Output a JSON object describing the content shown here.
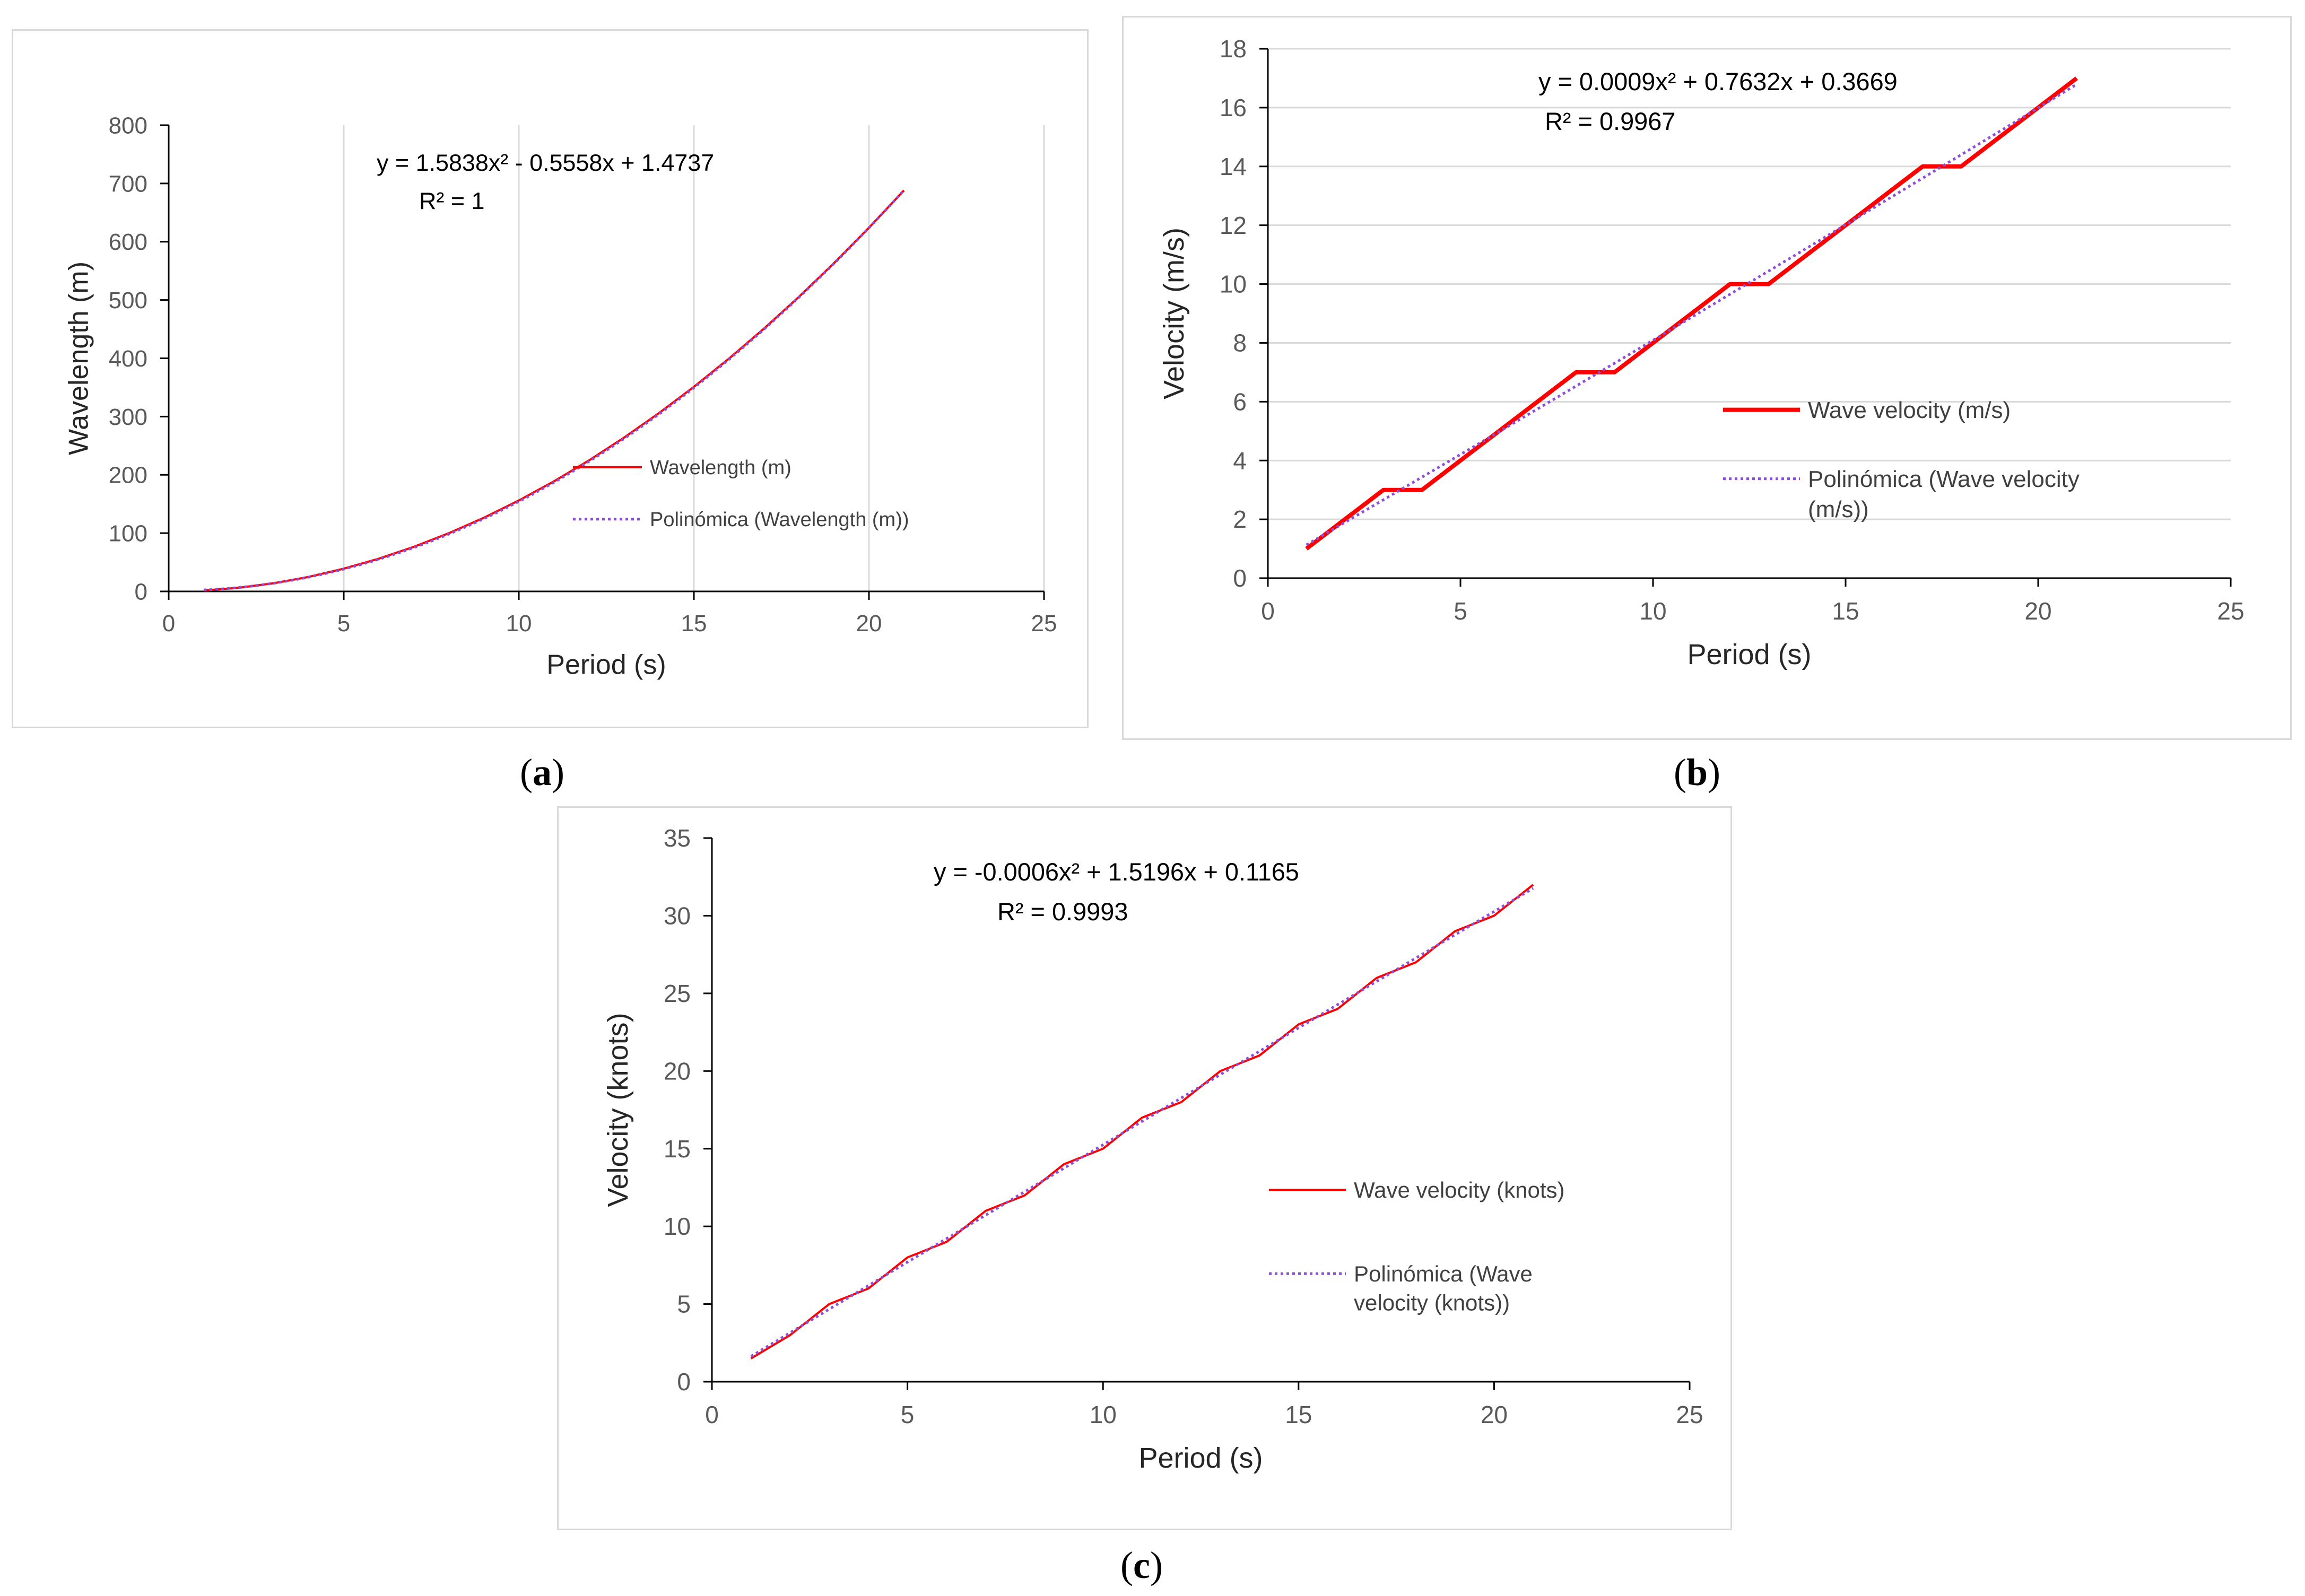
{
  "colors": {
    "data_line": "#ff0000",
    "trend_line": "#8e4fd6",
    "axis": "#000000",
    "gridline": "#d9d9d9"
  },
  "figure_labels": [
    "a",
    "b",
    "c"
  ],
  "chart_data": [
    {
      "id": "a",
      "type": "line",
      "xlabel": "Period (s)",
      "ylabel": "Wavelength (m)",
      "xlim": [
        0,
        25
      ],
      "ylim": [
        0,
        800
      ],
      "xticks": [
        0,
        5,
        10,
        15,
        20,
        25
      ],
      "yticks": [
        0,
        100,
        200,
        300,
        400,
        500,
        600,
        700,
        800
      ],
      "grid": "vertical",
      "equation": "y = 1.5838x² - 0.5558x + 1.4737",
      "r_squared": "R² = 1",
      "legend": [
        "Wavelength (m)",
        "Polinómica (Wavelength (m))"
      ],
      "legend_position": "lower-right",
      "series": [
        {
          "name": "Wavelength (m)",
          "style": "solid",
          "x": [
            1,
            2,
            3,
            4,
            5,
            6,
            7,
            8,
            9,
            10,
            11,
            12,
            13,
            14,
            15,
            16,
            17,
            18,
            19,
            20,
            21
          ],
          "y": [
            1.56,
            6.24,
            14.04,
            24.96,
            39.0,
            56.17,
            76.45,
            99.85,
            126.37,
            156.01,
            188.77,
            224.65,
            263.66,
            305.78,
            351.03,
            399.39,
            450.88,
            505.49,
            563.22,
            624.07,
            688.05
          ]
        },
        {
          "name": "Polinómica (Wavelength (m))",
          "style": "dotted",
          "fit": [
            1.5838,
            -0.5558,
            1.4737
          ],
          "x_range": [
            1,
            21
          ]
        }
      ]
    },
    {
      "id": "b",
      "type": "line",
      "xlabel": "Period (s)",
      "ylabel": "Velocity (m/s)",
      "xlim": [
        0,
        25
      ],
      "ylim": [
        0,
        18
      ],
      "xticks": [
        0,
        5,
        10,
        15,
        20,
        25
      ],
      "yticks": [
        0,
        2,
        4,
        6,
        8,
        10,
        12,
        14,
        16,
        18
      ],
      "grid": "horizontal",
      "equation": "y = 0.0009x² + 0.7632x + 0.3669",
      "r_squared": "R² = 0.9967",
      "legend": [
        "Wave velocity (m/s)",
        "Polinómica (Wave velocity (m/s))"
      ],
      "legend_position": "lower-right",
      "series": [
        {
          "name": "Wave velocity (m/s)",
          "style": "solid",
          "x": [
            1,
            2,
            3,
            4,
            5,
            6,
            7,
            8,
            9,
            10,
            11,
            12,
            13,
            14,
            15,
            16,
            17,
            18,
            19,
            20,
            21
          ],
          "y": [
            1,
            2,
            3,
            3,
            4,
            5,
            6,
            7,
            7,
            8,
            9,
            10,
            10,
            11,
            12,
            13,
            14,
            14,
            15,
            16,
            17
          ]
        },
        {
          "name": "Polinómica (Wave velocity (m/s))",
          "style": "dotted",
          "fit": [
            0.0009,
            0.7632,
            0.3669
          ],
          "x_range": [
            1,
            21
          ]
        }
      ]
    },
    {
      "id": "c",
      "type": "line",
      "xlabel": "Period (s)",
      "ylabel": "Velocity (knots)",
      "xlim": [
        0,
        25
      ],
      "ylim": [
        0,
        35
      ],
      "xticks": [
        0,
        5,
        10,
        15,
        20,
        25
      ],
      "yticks": [
        0,
        5,
        10,
        15,
        20,
        25,
        30,
        35
      ],
      "grid": "none",
      "equation": "y = -0.0006x² + 1.5196x  + 0.1165",
      "r_squared": "R² = 0.9993",
      "legend": [
        "Wave velocity (knots)",
        "Polinómica (Wave velocity (knots))"
      ],
      "legend_position": "lower-right",
      "series": [
        {
          "name": "Wave velocity (knots)",
          "style": "solid",
          "x": [
            1,
            2,
            3,
            4,
            5,
            6,
            7,
            8,
            9,
            10,
            11,
            12,
            13,
            14,
            15,
            16,
            17,
            18,
            19,
            20,
            21
          ],
          "y": [
            1.5,
            3,
            5,
            6,
            8,
            9,
            11,
            12,
            14,
            15,
            17,
            18,
            20,
            21,
            23,
            24,
            26,
            27,
            29,
            30,
            32
          ]
        },
        {
          "name": "Polinómica (Wave velocity (knots))",
          "style": "dotted",
          "fit": [
            -0.0006,
            1.5196,
            0.1165
          ],
          "x_range": [
            1,
            21
          ]
        }
      ]
    }
  ]
}
